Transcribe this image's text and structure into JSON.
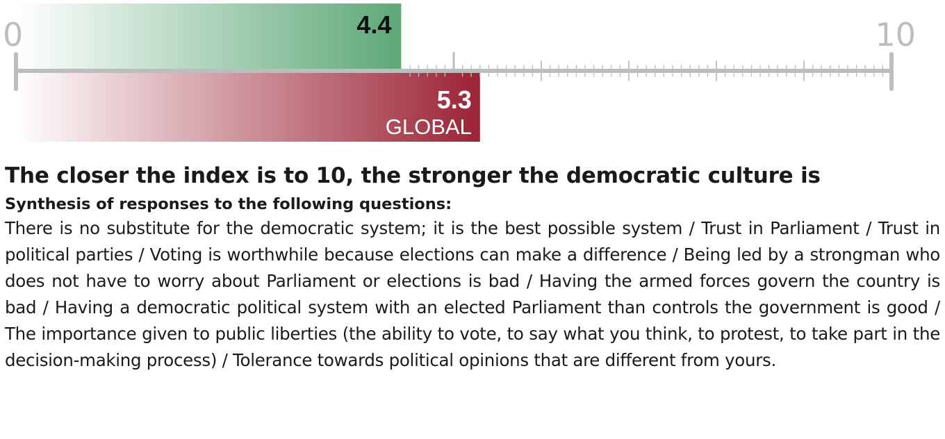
{
  "colors": {
    "country_bar": "#5ea878",
    "global_bar": "#9b2335",
    "axis": "#bdbdbd"
  },
  "chart_data": {
    "type": "bar",
    "orientation": "horizontal",
    "xlim": [
      0,
      10
    ],
    "scale_min_label": "0",
    "scale_max_label": "10",
    "series": [
      {
        "value": 4.4,
        "value_label": "4.4",
        "color": "#5ea878",
        "position": "above-axis"
      },
      {
        "name": "GLOBAL",
        "value": 5.3,
        "value_label": "5.3",
        "color": "#9b2335",
        "position": "below-axis"
      }
    ],
    "title": "The closer the index is to 10, the stronger the democratic culture is",
    "subtitle": "Synthesis of responses to the following questions:",
    "description": "There is no substitute for the democratic system; it is the best possible system / Trust in Parliament / Trust in political parties / Voting is worthwhile because elections can make a difference / Being led by a strongman who does not have to worry about Parliament or elections is bad / Having the armed forces govern the country is bad / Having a democratic political system with an elected Parliament than controls the government is good / The importance given to public liberties (the ability to vote, to say what you think, to protest, to take part in the decision-making process) / Tolerance towards political opinions that are different from yours."
  }
}
